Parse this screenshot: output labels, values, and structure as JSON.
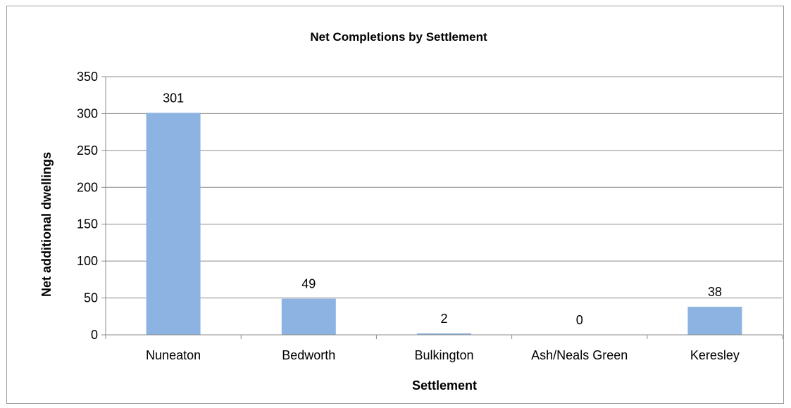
{
  "chart_data": {
    "type": "bar",
    "title": "Net Completions by Settlement",
    "xlabel": "Settlement",
    "ylabel": "Net additional dwellings",
    "categories": [
      "Nuneaton",
      "Bedworth",
      "Bulkington",
      "Ash/Neals Green",
      "Keresley"
    ],
    "values": [
      301,
      49,
      2,
      0,
      38
    ],
    "data_labels": [
      "301",
      "49",
      "2",
      "0",
      "38"
    ],
    "ylim": [
      0,
      350
    ],
    "yticks": [
      0,
      50,
      100,
      150,
      200,
      250,
      300,
      350
    ],
    "ytick_labels": [
      "0",
      "50",
      "100",
      "150",
      "200",
      "250",
      "300",
      "350"
    ],
    "grid": true,
    "legend": "none",
    "bar_color": "#8db3e2"
  }
}
